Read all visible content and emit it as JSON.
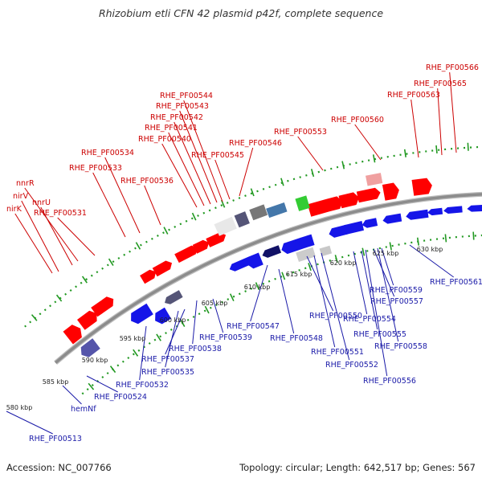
{
  "title": "Rhizobium etli CFN 42 plasmid p42f, complete sequence",
  "footer": {
    "accession": "Accession: NC_007766",
    "summary": "Topology: circular; Length: 642,517 bp; Genes: 567"
  },
  "colors": {
    "forward": "#ff0000",
    "reverse": "#1515e8",
    "backbone": "#8c8c8c",
    "tick": "#229922",
    "forward_label": "#cc0000",
    "reverse_label": "#1a1aa8"
  },
  "scale_ticks": [
    "580 kbp",
    "585 kbp",
    "590 kbp",
    "595 kbp",
    "600 kbp",
    "605 kbp",
    "610 kbp",
    "615 kbp",
    "620 kbp",
    "625 kbp",
    "630 kbp"
  ],
  "forward_labels": [
    "nirK",
    "nirV",
    "nnrU",
    "nnrR",
    "RHE_PF00531",
    "RHE_PF00533",
    "RHE_PF00534",
    "RHE_PF00536",
    "RHE_PF00540",
    "RHE_PF00541",
    "RHE_PF00542",
    "RHE_PF00543",
    "RHE_PF00544",
    "RHE_PF00545",
    "RHE_PF00546",
    "RHE_PF00553",
    "RHE_PF00560",
    "RHE_PF00563",
    "RHE_PF00565",
    "RHE_PF00566"
  ],
  "reverse_labels": [
    "RHE_PF00513",
    "hemNf",
    "RHE_PF00524",
    "RHE_PF00532",
    "RHE_PF00535",
    "RHE_PF00537",
    "RHE_PF00538",
    "RHE_PF00539",
    "RHE_PF00547",
    "RHE_PF00548",
    "RHE_PF00550",
    "RHE_PF00551",
    "RHE_PF00552",
    "RHE_PF00554",
    "RHE_PF00555",
    "RHE_PF00556",
    "RHE_PF00557",
    "RHE_PF00558",
    "RHE_PF00559",
    "RHE_PF00561"
  ]
}
